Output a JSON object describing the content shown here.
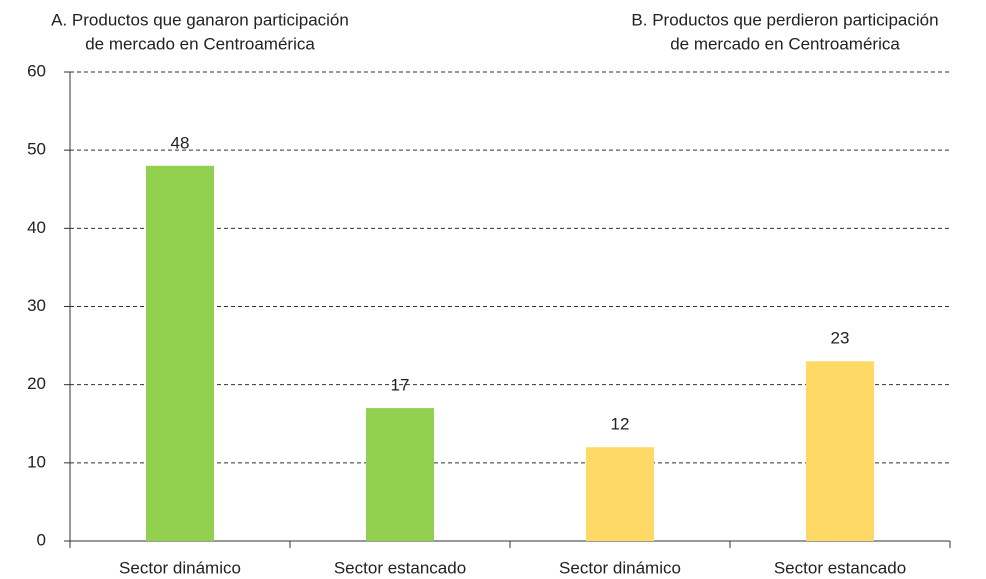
{
  "chart_data": {
    "type": "bar",
    "annotations": [
      [
        "A. Productos que ganaron participación",
        "de mercado en Centroamérica"
      ],
      [
        "B. Productos que perdieron participación",
        "de mercado en Centroamérica"
      ]
    ],
    "categories": [
      "Sector dinámico",
      "Sector estancado",
      "Sector dinámico",
      "Sector estancado"
    ],
    "values": [
      48,
      17,
      12,
      23
    ],
    "colors": [
      "#92d050",
      "#92d050",
      "#ffd966",
      "#ffd966"
    ],
    "ylim": [
      0,
      60
    ],
    "yticks": [
      0,
      10,
      20,
      30,
      40,
      50,
      60
    ],
    "grid": true
  }
}
